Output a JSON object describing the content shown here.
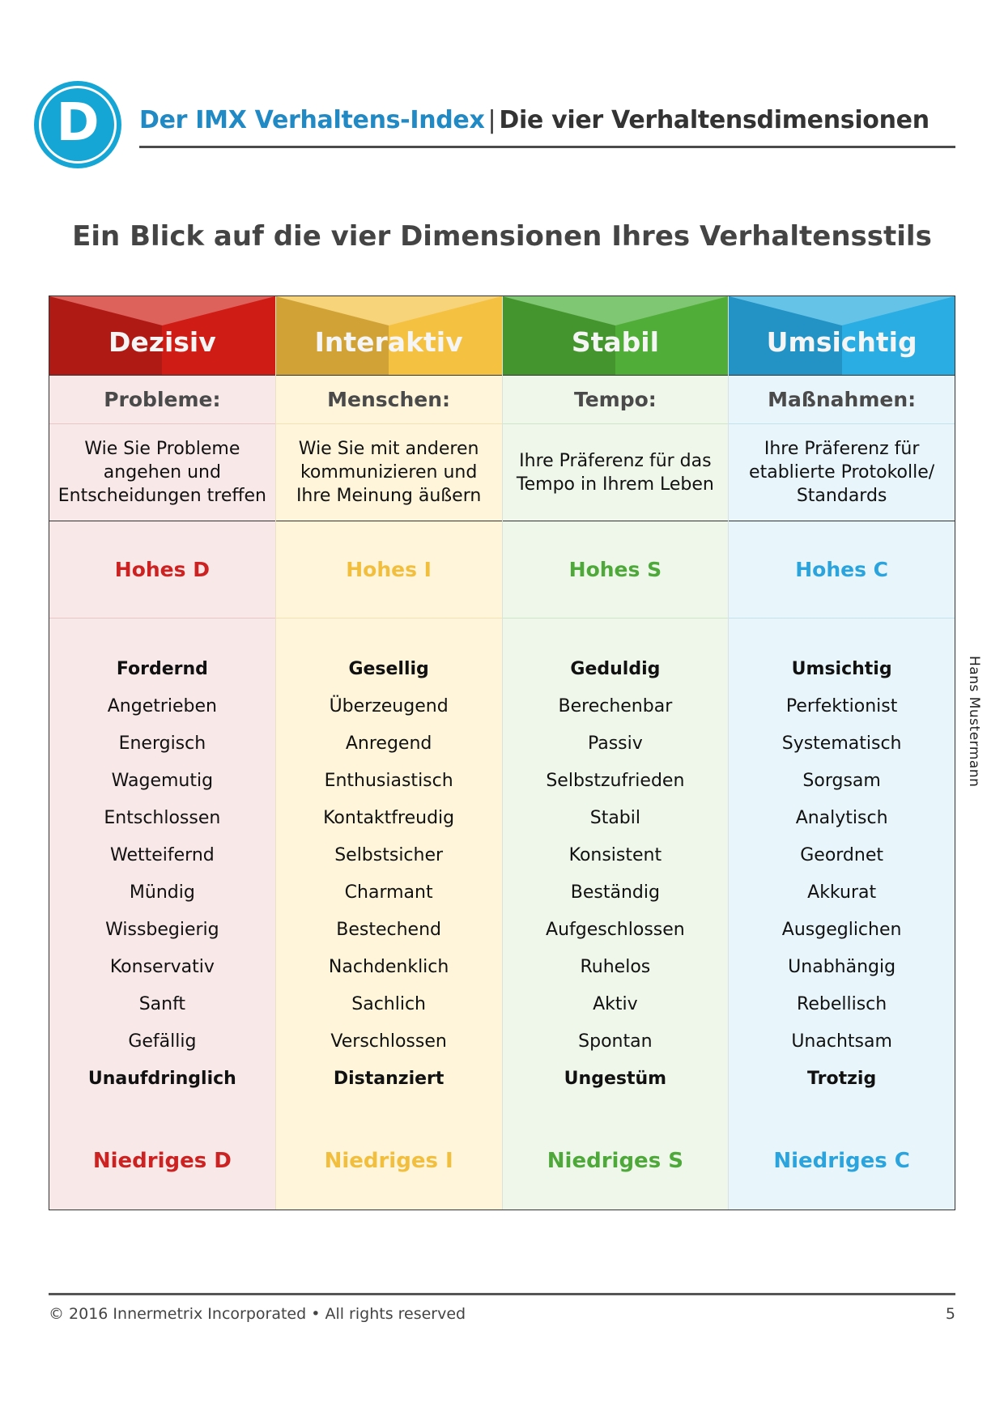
{
  "header": {
    "logo_letter": "D",
    "brand": "Der IMX Verhaltens-Index",
    "separator": "|",
    "section": "Die vier Verhaltensdimensionen"
  },
  "page_title": "Ein Blick auf die vier Dimensionen Ihres Verhaltensstils",
  "side_name": "Hans Mustermann",
  "columns": [
    {
      "name": "Dezisiv",
      "colors": {
        "dark": "#b01a14",
        "main": "#cf1c14",
        "light": "#de625c",
        "text": "#cc2222",
        "bg": "#f8e8e8",
        "rule": "#e8c6c6"
      },
      "sub_head": "Probleme:",
      "description": "Wie Sie Probleme angehen und Entscheidungen treffen",
      "high": "Hohes D",
      "traits": [
        "Fordernd",
        "Angetrieben",
        "Energisch",
        "Wagemutig",
        "Entschlossen",
        "Wetteifernd",
        "Mündig",
        "Wissbegierig",
        "Konservativ",
        "Sanft",
        "Gefällig",
        "Unaufdringlich"
      ],
      "low": "Niedriges D"
    },
    {
      "name": "Interaktiv",
      "colors": {
        "dark": "#d1a337",
        "main": "#f4c141",
        "light": "#f7d47a",
        "text": "#f2be3e",
        "bg": "#fef5da",
        "rule": "#f2e2b6"
      },
      "sub_head": "Menschen:",
      "description": "Wie Sie mit anderen kommunizieren und Ihre Meinung äußern",
      "high": "Hohes I",
      "traits": [
        "Gesellig",
        "Überzeugend",
        "Anregend",
        "Enthusiastisch",
        "Kontaktfreudig",
        "Selbstsicher",
        "Charmant",
        "Bestechend",
        "Nachdenklich",
        "Sachlich",
        "Verschlossen",
        "Distanziert"
      ],
      "low": "Niedriges I"
    },
    {
      "name": "Stabil",
      "colors": {
        "dark": "#45952f",
        "main": "#50ad38",
        "light": "#80c774",
        "text": "#4ea93a",
        "bg": "#eef7ea",
        "rule": "#cfe6c8"
      },
      "sub_head": "Tempo:",
      "description": "Ihre Präferenz für das Tempo in Ihrem Leben",
      "high": "Hohes S",
      "traits": [
        "Geduldig",
        "Berechenbar",
        "Passiv",
        "Selbstzufrieden",
        "Stabil",
        "Konsistent",
        "Beständig",
        "Aufgeschlossen",
        "Ruhelos",
        "Aktiv",
        "Spontan",
        "Ungestüm"
      ],
      "low": "Niedriges S"
    },
    {
      "name": "Umsichtig",
      "colors": {
        "dark": "#2393c5",
        "main": "#2aade2",
        "light": "#66c3e8",
        "text": "#2ba3dc",
        "bg": "#e8f6fc",
        "rule": "#c4e2ee"
      },
      "sub_head": "Maßnahmen:",
      "description": "Ihre Präferenz für etablierte Protokolle/ Standards",
      "high": "Hohes C",
      "traits": [
        "Umsichtig",
        "Perfektionist",
        "Systematisch",
        "Sorgsam",
        "Analytisch",
        "Geordnet",
        "Akkurat",
        "Ausgeglichen",
        "Unabhängig",
        "Rebellisch",
        "Unachtsam",
        "Trotzig"
      ],
      "low": "Niedriges C"
    }
  ],
  "bold_trait_indexes": [
    0,
    11
  ],
  "footer": {
    "copyright": "© 2016 Innermetrix Incorporated • All rights reserved",
    "page_number": "5"
  }
}
